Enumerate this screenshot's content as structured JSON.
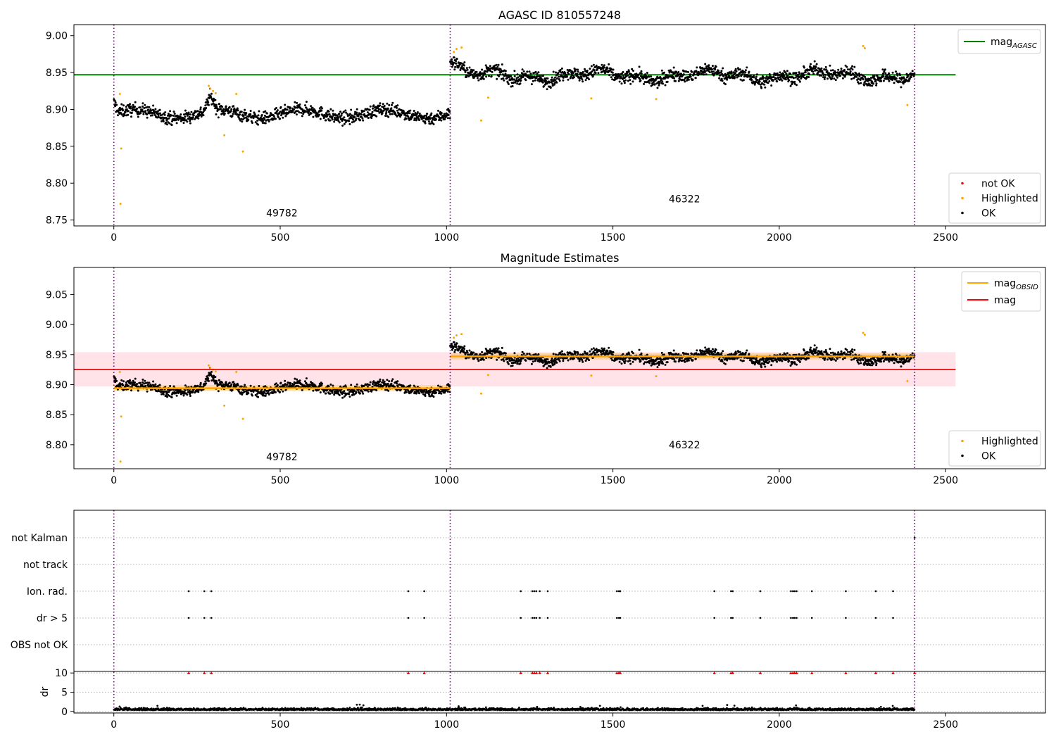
{
  "figure": {
    "background": "#ffffff"
  },
  "colors": {
    "ok": "#000000",
    "highlighted": "#ffa500",
    "not_ok": "#ff0000",
    "agasc_line": "#008000",
    "obsid_line": "#ffa500",
    "mag_line": "#ff0000",
    "mag_band": "#ffc0cb",
    "obs_boundary": "#800080",
    "grid": "#b0b0b0"
  },
  "chart_data": [
    {
      "type": "scatter",
      "title": "AGASC ID 810557248",
      "xlim": [
        -120,
        2800
      ],
      "ylim": [
        8.742,
        9.015
      ],
      "xticks": [
        0,
        500,
        1000,
        1500,
        2000,
        2500
      ],
      "yticks": [
        8.75,
        8.8,
        8.85,
        8.9,
        8.95,
        9.0
      ],
      "ytick_labels": [
        "8.75",
        "8.80",
        "8.85",
        "8.90",
        "8.95",
        "9.00"
      ],
      "obs_boundaries": [
        0,
        1011,
        2407
      ],
      "obsid_labels": [
        {
          "text": "49782",
          "x": 505,
          "y": 8.755
        },
        {
          "text": "46322",
          "x": 1715,
          "y": 8.774
        }
      ],
      "hlines": [
        {
          "name": "mag_AGASC",
          "y": 8.947,
          "xmin": -120,
          "xmax": 2530
        }
      ],
      "highlighted_points": [
        [
          18,
          8.921
        ],
        [
          22,
          8.847
        ],
        [
          20,
          8.772
        ],
        [
          285,
          8.932
        ],
        [
          290,
          8.928
        ],
        [
          298,
          8.925
        ],
        [
          306,
          8.922
        ],
        [
          332,
          8.865
        ],
        [
          368,
          8.921
        ],
        [
          388,
          8.843
        ],
        [
          1022,
          8.978
        ],
        [
          1030,
          8.982
        ],
        [
          1045,
          8.984
        ],
        [
          1104,
          8.885
        ],
        [
          1125,
          8.916
        ],
        [
          1435,
          8.915
        ],
        [
          1630,
          8.914
        ],
        [
          2252,
          8.986
        ],
        [
          2257,
          8.983
        ],
        [
          2385,
          8.906
        ]
      ],
      "legends": [
        {
          "position": "top-right",
          "entries": [
            {
              "kind": "line",
              "color": "#008000",
              "label": "mag",
              "sub": "AGASC"
            }
          ]
        },
        {
          "position": "lower-right",
          "entries": [
            {
              "kind": "dot",
              "color": "#ff0000",
              "label": "not OK"
            },
            {
              "kind": "dot",
              "color": "#ffa500",
              "label": "Highlighted"
            },
            {
              "kind": "dot",
              "color": "#000000",
              "label": "OK"
            }
          ]
        }
      ]
    },
    {
      "type": "scatter",
      "title": "Magnitude Estimates",
      "xlim": [
        -120,
        2800
      ],
      "ylim": [
        8.76,
        9.095
      ],
      "xticks": [
        0,
        500,
        1000,
        1500,
        2000,
        2500
      ],
      "yticks": [
        8.8,
        8.85,
        8.9,
        8.95,
        9.0,
        9.05
      ],
      "ytick_labels": [
        "8.80",
        "8.85",
        "8.90",
        "8.95",
        "9.00",
        "9.05"
      ],
      "obs_boundaries": [
        0,
        1011,
        2407
      ],
      "obsid_labels": [
        {
          "text": "49782",
          "x": 505,
          "y": 8.774
        },
        {
          "text": "46322",
          "x": 1715,
          "y": 8.794
        }
      ],
      "mag": {
        "y": 8.925,
        "band": [
          8.897,
          8.954
        ],
        "xmin": -120,
        "xmax": 2530
      },
      "mag_obsid_segments": [
        {
          "xmin": 0,
          "xmax": 1011,
          "y": 8.894,
          "band": [
            8.889,
            8.899
          ]
        },
        {
          "xmin": 1011,
          "xmax": 2407,
          "y": 8.947,
          "band": [
            8.942,
            8.952
          ]
        }
      ],
      "highlighted_points": [
        [
          18,
          8.921
        ],
        [
          22,
          8.847
        ],
        [
          20,
          8.772
        ],
        [
          285,
          8.932
        ],
        [
          290,
          8.928
        ],
        [
          298,
          8.925
        ],
        [
          306,
          8.922
        ],
        [
          332,
          8.865
        ],
        [
          368,
          8.921
        ],
        [
          388,
          8.843
        ],
        [
          1022,
          8.978
        ],
        [
          1030,
          8.982
        ],
        [
          1045,
          8.984
        ],
        [
          1104,
          8.885
        ],
        [
          1125,
          8.916
        ],
        [
          1435,
          8.915
        ],
        [
          1630,
          8.914
        ],
        [
          2252,
          8.986
        ],
        [
          2257,
          8.983
        ],
        [
          2385,
          8.906
        ]
      ],
      "legends": [
        {
          "position": "top-right",
          "entries": [
            {
              "kind": "line",
              "color": "#ffa500",
              "label": "mag",
              "sub": "OBSID"
            },
            {
              "kind": "line",
              "color": "#ff0000",
              "label": "mag",
              "sub": ""
            }
          ]
        },
        {
          "position": "lower-right",
          "entries": [
            {
              "kind": "dot",
              "color": "#ffa500",
              "label": "Highlighted"
            },
            {
              "kind": "dot",
              "color": "#000000",
              "label": "OK"
            }
          ]
        }
      ]
    },
    {
      "type": "scatter",
      "title": "",
      "xlim": [
        -120,
        2800
      ],
      "obs_boundaries": [
        0,
        1011,
        2407
      ],
      "flag_rows": [
        "not Kalman",
        "not track",
        "Ion. rad.",
        "dr > 5",
        "OBS not OK"
      ],
      "flag_events": {
        "not Kalman": [
          2407
        ],
        "not track": [],
        "Ion. rad.": [
          225,
          272,
          293,
          885,
          933,
          1223,
          1258,
          1264,
          1270,
          1280,
          1304,
          1512,
          1518,
          1522,
          1805,
          1855,
          1860,
          1943,
          2035,
          2041,
          2046,
          2052,
          2098,
          2200,
          2290,
          2342
        ],
        "dr > 5": [
          225,
          272,
          293,
          885,
          933,
          1223,
          1258,
          1264,
          1270,
          1280,
          1304,
          1512,
          1518,
          1522,
          1805,
          1855,
          1860,
          1943,
          2035,
          2041,
          2046,
          2052,
          2098,
          2200,
          2290,
          2342
        ],
        "OBS not OK": []
      },
      "dr": {
        "ylabel": "dr",
        "ylim": [
          -0.4,
          10.4
        ],
        "yticks": [
          0,
          5,
          10
        ],
        "clipped_at": 10,
        "clipped_x": [
          225,
          272,
          293,
          885,
          933,
          1223,
          1258,
          1264,
          1270,
          1280,
          1304,
          1512,
          1518,
          1522,
          1805,
          1855,
          1860,
          1943,
          2035,
          2041,
          2046,
          2052,
          2098,
          2200,
          2290,
          2342,
          2407
        ]
      },
      "xticks": [
        0,
        500,
        1000,
        1500,
        2000,
        2500
      ]
    }
  ]
}
